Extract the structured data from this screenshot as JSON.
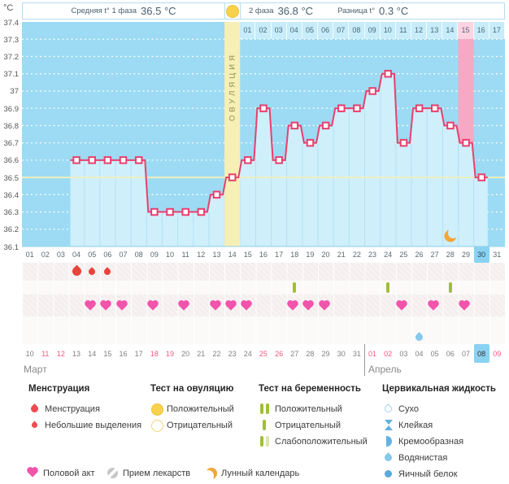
{
  "header": {
    "unit": "°C",
    "avg_phase1_label": "Средняя t° 1 фаза",
    "avg_phase1_value": "36.5 °C",
    "phase2_label": "2 фаза",
    "phase2_value": "36.8 °C",
    "diff_label": "Разница t°",
    "diff_value": "0.3 °C"
  },
  "ovulation_column_label": "ОВУЛЯЦИЯ",
  "chart_data": {
    "type": "line",
    "title": "Basal body temperature cycle chart",
    "ylabel": "°C",
    "ylim": [
      36.1,
      37.4
    ],
    "yticks": [
      "37.4",
      "37.3",
      "37.2",
      "37.1",
      "37",
      "36.9",
      "36.8",
      "36.7",
      "36.6",
      "36.5",
      "36.4",
      "36.3",
      "36.2",
      "36.1"
    ],
    "cycle_days": [
      "01",
      "02",
      "03",
      "04",
      "05",
      "06",
      "07",
      "08",
      "09",
      "10",
      "11",
      "12",
      "13",
      "14",
      "15",
      "16",
      "17",
      "18",
      "19",
      "20",
      "21",
      "22",
      "23",
      "24",
      "25",
      "26",
      "27",
      "28",
      "29",
      "30",
      "31"
    ],
    "dpo_days": [
      "01",
      "02",
      "03",
      "04",
      "05",
      "06",
      "07",
      "08",
      "09",
      "10",
      "11",
      "12",
      "13",
      "14",
      "15",
      "16",
      "17"
    ],
    "highlight_dpo_index": 14,
    "temperatures": [
      null,
      null,
      null,
      36.6,
      36.6,
      36.6,
      36.6,
      36.6,
      36.3,
      36.3,
      36.3,
      36.3,
      36.4,
      36.5,
      36.6,
      36.9,
      36.6,
      36.8,
      36.7,
      36.8,
      36.9,
      36.9,
      37.0,
      37.1,
      36.7,
      36.9,
      36.9,
      36.8,
      36.7,
      36.5,
      null
    ],
    "coverline": 36.5,
    "ovulation_cycle_day": 14,
    "pink_cycle_day": 29,
    "selected_cycle_day": 30,
    "moon_cycle_day": 28,
    "grid": "dotted-white",
    "legend_position": "bottom"
  },
  "symbols": {
    "menstruation": [
      {
        "day": 4,
        "size": "large"
      },
      {
        "day": 5,
        "size": "small"
      },
      {
        "day": 6,
        "size": "small"
      }
    ],
    "pregnancy_tests": [
      {
        "day": 18,
        "result": "negative"
      },
      {
        "day": 24,
        "result": "negative"
      },
      {
        "day": 28,
        "result": "negative"
      }
    ],
    "intercourse_days": [
      5,
      6,
      7,
      9,
      11,
      13,
      14,
      15,
      18,
      19,
      20,
      25,
      27,
      29
    ],
    "cervical_fluid": [
      {
        "day": 26,
        "type": "Водянистая"
      }
    ]
  },
  "dates": {
    "labels": [
      "10",
      "11",
      "12",
      "13",
      "14",
      "15",
      "16",
      "17",
      "18",
      "19",
      "20",
      "21",
      "22",
      "23",
      "24",
      "25",
      "26",
      "27",
      "28",
      "29",
      "30",
      "31",
      "01",
      "02",
      "03",
      "04",
      "05",
      "06",
      "07",
      "08",
      "09"
    ],
    "weekend_indices": [
      1,
      2,
      8,
      9,
      15,
      16,
      22,
      23,
      30
    ],
    "today_index": 29,
    "march_label": "Март",
    "april_label": "Апрель"
  },
  "legend": {
    "groups": [
      {
        "title": "Менструация",
        "x": 35,
        "items": [
          {
            "icon": "drop-large",
            "label": "Менструация"
          },
          {
            "icon": "drop-small",
            "label": "Небольшие выделения"
          }
        ]
      },
      {
        "title": "Тест на овуляцию",
        "x": 185,
        "items": [
          {
            "icon": "circle-filled",
            "label": "Положительный"
          },
          {
            "icon": "circle-outline",
            "label": "Отрицательный"
          }
        ]
      },
      {
        "title": "Тест на беременность",
        "x": 318,
        "items": [
          {
            "icon": "bars-double",
            "label": "Положительный"
          },
          {
            "icon": "bar-single",
            "label": "Отрицательный"
          },
          {
            "icon": "bars-weak",
            "label": "Слабоположительный"
          }
        ]
      },
      {
        "title": "Цервикальная жидкость",
        "x": 470,
        "items": [
          {
            "icon": "drop-outline",
            "label": "Сухо"
          },
          {
            "icon": "sticky",
            "label": "Клейкая"
          },
          {
            "icon": "halfmoon",
            "label": "Кремообразная"
          },
          {
            "icon": "drop-blue",
            "label": "Водянистая"
          },
          {
            "icon": "circle-blue",
            "label": "Яичный белок"
          }
        ]
      }
    ],
    "extra_row": [
      {
        "icon": "heart",
        "label": "Половой акт",
        "x": 33
      },
      {
        "icon": "pill",
        "label": "Прием лекарств",
        "x": 131
      },
      {
        "icon": "moon",
        "label": "Лунный календарь",
        "x": 252
      }
    ]
  },
  "colors": {
    "plot_bg": "#9cdbf3",
    "fill": "#cfeffb",
    "separator": "#b2e2f6",
    "line": "#e8406d",
    "marker_fill": "#ffffff",
    "coverline": "#eeeec0",
    "ovulation_col": "#f6efb6",
    "pink_col": "#f6a9c5",
    "pink_cell": "#fcd3e1",
    "grid": "#ffffff",
    "moon": "#f2a63b",
    "heart": "#f154aa",
    "mens_drop": "#e8433a",
    "test_bar": "#a0bf37",
    "cervical_drop": "#85c8ec",
    "selected_cell": "#8ad2f2",
    "weekend_text": "#f4597e"
  }
}
